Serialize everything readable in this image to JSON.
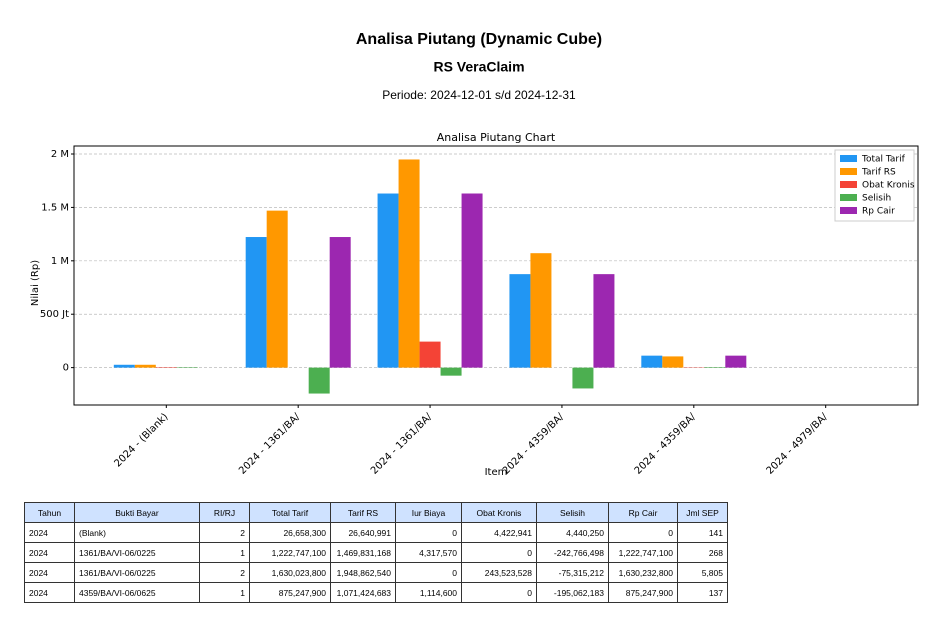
{
  "header": {
    "title": "Analisa Piutang (Dynamic Cube)",
    "subtitle": "RS VeraClaim",
    "period": "Periode: 2024-12-01 s/d 2024-12-31"
  },
  "chart_data": {
    "type": "bar",
    "title": "Analisa Piutang Chart",
    "x_label": "Item",
    "y_label": "Nilai (Rp)",
    "categories": [
      "2024 - (Blank)",
      "2024 - 1361/BA/",
      "2024 - 1361/BA/",
      "2024 - 4359/BA/",
      "2024 - 4359/BA/",
      "2024 - 4979/BA/"
    ],
    "series": [
      {
        "name": "Total Tarif",
        "color": "#2196f3",
        "values": [
          26658300,
          1222747100,
          1630023800,
          875247900,
          112000000,
          null
        ]
      },
      {
        "name": "Tarif RS",
        "color": "#ff9800",
        "values": [
          26640991,
          1469831168,
          1948862540,
          1071424683,
          105000000,
          null
        ]
      },
      {
        "name": "Obat Kronis",
        "color": "#f44336",
        "values": [
          4422941,
          0,
          243523528,
          0,
          3000000,
          null
        ]
      },
      {
        "name": "Selisih",
        "color": "#4caf50",
        "values": [
          4440250,
          -242766498,
          -75315212,
          -195062183,
          5000000,
          null
        ]
      },
      {
        "name": "Rp Cair",
        "color": "#9c27b0",
        "values": [
          0,
          1222747100,
          1630232800,
          875247900,
          112000000,
          null
        ]
      }
    ],
    "ylim": [
      -350000000,
      2075000000
    ],
    "yticks": [
      0,
      {
        "value": 500000000,
        "label": "500 Jt"
      },
      {
        "value": 1000000000,
        "label": "1 M"
      },
      {
        "value": 1500000000,
        "label": "1.5 M"
      },
      {
        "value": 2000000000,
        "label": "2 M"
      }
    ],
    "grid": true,
    "legend": "upper-right"
  },
  "table": {
    "headers": [
      "Tahun",
      "Bukti Bayar",
      "RI/RJ",
      "Total Tarif",
      "Tarif RS",
      "Iur Biaya",
      "Obat Kronis",
      "Selisih",
      "Rp Cair",
      "Jml SEP"
    ],
    "rows": [
      [
        "2024",
        "(Blank)",
        "2",
        "26,658,300",
        "26,640,991",
        "0",
        "4,422,941",
        "4,440,250",
        "0",
        "141"
      ],
      [
        "2024",
        "1361/BA/VI-06/0225",
        "1",
        "1,222,747,100",
        "1,469,831,168",
        "4,317,570",
        "0",
        "-242,766,498",
        "1,222,747,100",
        "268"
      ],
      [
        "2024",
        "1361/BA/VI-06/0225",
        "2",
        "1,630,023,800",
        "1,948,862,540",
        "0",
        "243,523,528",
        "-75,315,212",
        "1,630,232,800",
        "5,805"
      ],
      [
        "2024",
        "4359/BA/VI-06/0625",
        "1",
        "875,247,900",
        "1,071,424,683",
        "1,114,600",
        "0",
        "-195,062,183",
        "875,247,900",
        "137"
      ]
    ]
  }
}
